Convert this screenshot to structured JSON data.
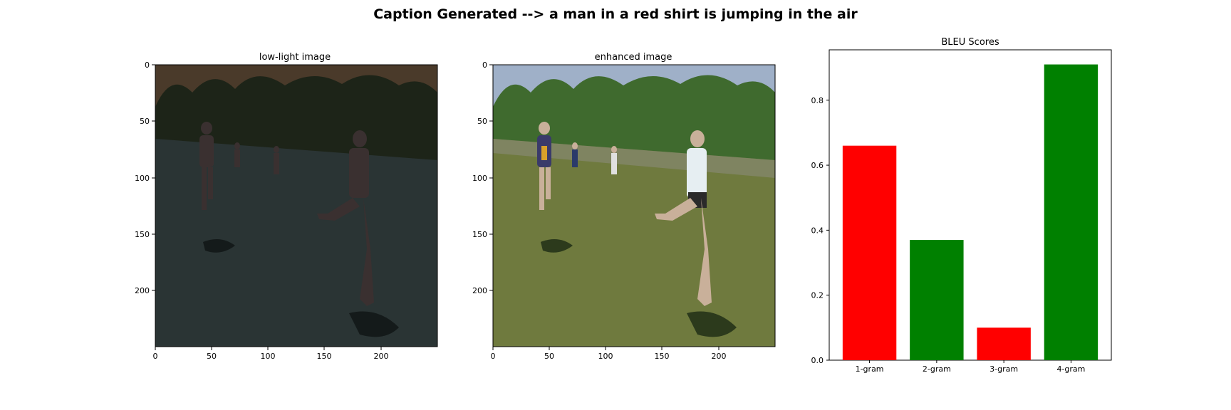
{
  "figure": {
    "suptitle": "Caption Generated --> a man in a red shirt is jumping in the air"
  },
  "images": [
    {
      "title": "low-light image",
      "description": "dark, underexposed photo of runners on a grass field",
      "xticks": [
        "0",
        "50",
        "100",
        "150",
        "200"
      ],
      "yticks": [
        "0",
        "50",
        "100",
        "150",
        "200"
      ],
      "colors": {
        "sky": "#4a3a2a",
        "trees": "#1d2418",
        "grass": "#2a3434",
        "people": "#3a3030"
      }
    },
    {
      "title": "enhanced image",
      "description": "brightened photo of runners on a grass field",
      "xticks": [
        "0",
        "50",
        "100",
        "150",
        "200"
      ],
      "yticks": [
        "0",
        "50",
        "100",
        "150",
        "200"
      ],
      "colors": {
        "sky": "#9fb0c8",
        "trees": "#3f6a2e",
        "grass": "#6f7a3e",
        "people": "#c9b09a"
      }
    }
  ],
  "chart_data": {
    "type": "bar",
    "title": "BLEU Scores",
    "categories": [
      "1-gram",
      "2-gram",
      "3-gram",
      "4-gram"
    ],
    "values": [
      0.66,
      0.37,
      0.1,
      0.91
    ],
    "colors": [
      "#ff0000",
      "#008000",
      "#ff0000",
      "#008000"
    ],
    "xlabel": "",
    "ylabel": "",
    "ylim": [
      0,
      0.955
    ],
    "yticks": [
      0.0,
      0.2,
      0.4,
      0.6,
      0.8
    ],
    "ytick_labels": [
      "0.0",
      "0.2",
      "0.4",
      "0.6",
      "0.8"
    ],
    "grid": false
  }
}
